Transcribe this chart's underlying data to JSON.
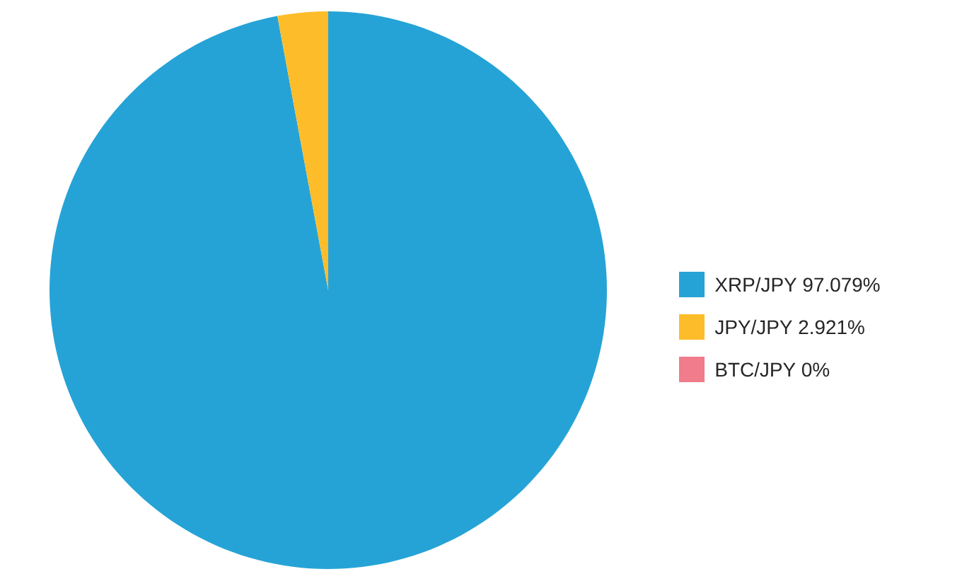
{
  "chart_data": {
    "type": "pie",
    "categories": [
      "XRP/JPY 97.079%",
      "JPY/JPY 2.921%",
      "BTC/JPY 0%"
    ],
    "values": [
      97.079,
      2.921,
      0
    ],
    "colors": [
      "#26a3d6",
      "#fdbd2a",
      "#f07c8c"
    ],
    "legend": "right"
  }
}
